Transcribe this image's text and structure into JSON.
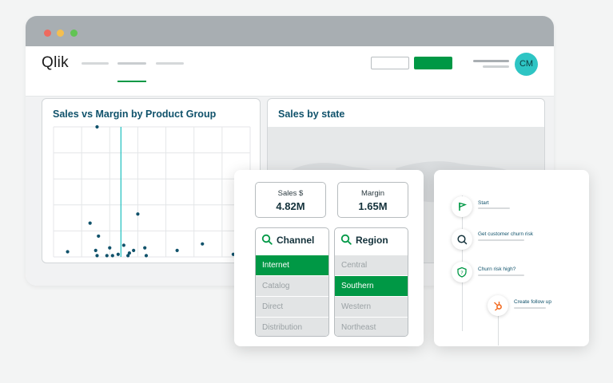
{
  "app": {
    "logo": "Qlik",
    "avatar_initials": "CM",
    "colors": {
      "accent": "#009845",
      "avatar": "#2ec5c4",
      "title": "#10526b"
    }
  },
  "charts": {
    "scatter_title": "Sales vs Margin by Product Group",
    "map_title": "Sales by state"
  },
  "chart_data": {
    "type": "scatter",
    "title": "Sales vs Margin by Product Group",
    "xlabel": "",
    "ylabel": "",
    "x": [
      0.5,
      1.3,
      1.5,
      1.55,
      1.6,
      1.9,
      2.0,
      2.1,
      2.3,
      2.5,
      2.65,
      2.7,
      2.85,
      3.0,
      3.25,
      3.3,
      4.4,
      5.3,
      6.4
    ],
    "y": [
      0.2,
      1.3,
      0.25,
      0.05,
      0.8,
      0.05,
      0.35,
      0.05,
      0.1,
      0.45,
      0.05,
      0.15,
      0.25,
      1.65,
      0.35,
      0.05,
      0.25,
      0.5,
      0.1
    ],
    "y_top_point": [
      1.55,
      5.0
    ],
    "xlim": [
      0,
      7
    ],
    "ylim": [
      0,
      5
    ],
    "grid": true
  },
  "kpis": [
    {
      "label": "Sales $",
      "value": "4.82M"
    },
    {
      "label": "Margin",
      "value": "1.65M"
    }
  ],
  "filters": {
    "channel": {
      "title": "Channel",
      "items": [
        {
          "label": "Internet",
          "state": "selected"
        },
        {
          "label": "Catalog",
          "state": "excluded"
        },
        {
          "label": "Direct",
          "state": "excluded"
        },
        {
          "label": "Distribution",
          "state": "excluded"
        }
      ]
    },
    "region": {
      "title": "Region",
      "items": [
        {
          "label": "Central",
          "state": "excluded"
        },
        {
          "label": "Southern",
          "state": "selected"
        },
        {
          "label": "Western",
          "state": "excluded"
        },
        {
          "label": "Northeast",
          "state": "excluded"
        }
      ]
    }
  },
  "flow": {
    "steps": [
      {
        "label": "Start",
        "icon": "flag-icon"
      },
      {
        "label": "Get customer churn risk",
        "icon": "search-icon"
      },
      {
        "label": "Churn risk high?",
        "icon": "decision-shield-icon"
      },
      {
        "label": "Create follow up",
        "icon": "hubspot-icon"
      }
    ]
  }
}
